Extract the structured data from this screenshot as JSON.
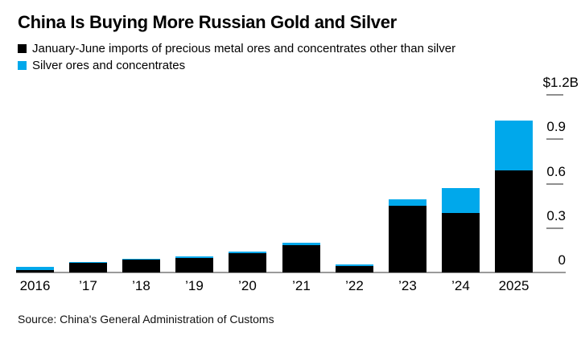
{
  "page": {
    "title": "China Is Buying More Russian Gold and Silver"
  },
  "legend": {
    "items": [
      {
        "label": "January-June imports of precious metal ores and concentrates other than silver",
        "color": "#000000"
      },
      {
        "label": "Silver ores and concentrates",
        "color": "#00a8eb"
      }
    ]
  },
  "source": "Source: China's General Administration of Customs",
  "chart_data": {
    "type": "bar",
    "stacked": true,
    "title": "China Is Buying More Russian Gold and Silver",
    "unit": "USD billions",
    "categories": [
      "2016",
      "’17",
      "’18",
      "’19",
      "’20",
      "’21",
      "’22",
      "’23",
      "’24",
      "2025"
    ],
    "series": [
      {
        "name": "January-June imports of precious metal ores and concentrates other than silver",
        "color": "#000000",
        "values": [
          0.018,
          0.065,
          0.088,
          0.1,
          0.13,
          0.185,
          0.042,
          0.45,
          0.4,
          0.69
        ]
      },
      {
        "name": "Silver ores and concentrates",
        "color": "#00a8eb",
        "values": [
          0.018,
          0.008,
          0.005,
          0.008,
          0.013,
          0.016,
          0.014,
          0.045,
          0.172,
          0.335
        ]
      }
    ],
    "y_axis": {
      "min": 0,
      "max": 1.2,
      "ticks": [
        0,
        0.3,
        0.6,
        0.9,
        1.2
      ],
      "tick_labels": [
        "0",
        "0.3",
        "0.6",
        "0.9",
        "$1.2B"
      ],
      "side": "right"
    },
    "x_axis": {
      "position": "bottom"
    },
    "legend_position": "top-left",
    "grid": false
  }
}
